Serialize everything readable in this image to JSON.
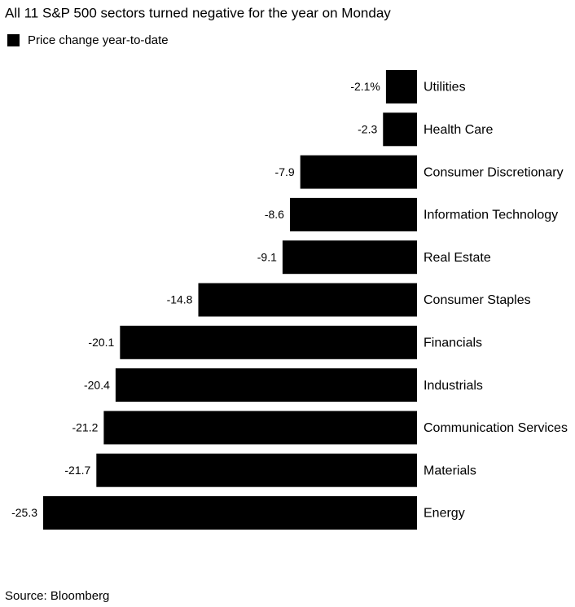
{
  "chart_data": {
    "type": "bar",
    "orientation": "horizontal",
    "title": "All 11 S&P 500 sectors turned negative for the year on Monday",
    "categories": [
      "Utilities",
      "Health Care",
      "Consumer Discretionary",
      "Information Technology",
      "Real Estate",
      "Consumer Staples",
      "Financials",
      "Industrials",
      "Communication Services",
      "Materials",
      "Energy"
    ],
    "series": [
      {
        "name": "Price change year-to-date",
        "color": "#000000",
        "values": [
          -2.1,
          -2.3,
          -7.9,
          -8.6,
          -9.1,
          -14.8,
          -20.1,
          -20.4,
          -21.2,
          -21.7,
          -25.3
        ],
        "value_labels": [
          "-2.1%",
          "-2.3",
          "-7.9",
          "-8.6",
          "-9.1",
          "-14.8",
          "-20.1",
          "-20.4",
          "-21.2",
          "-21.7",
          "-25.3"
        ]
      }
    ],
    "source": "Source: Bloomberg"
  }
}
